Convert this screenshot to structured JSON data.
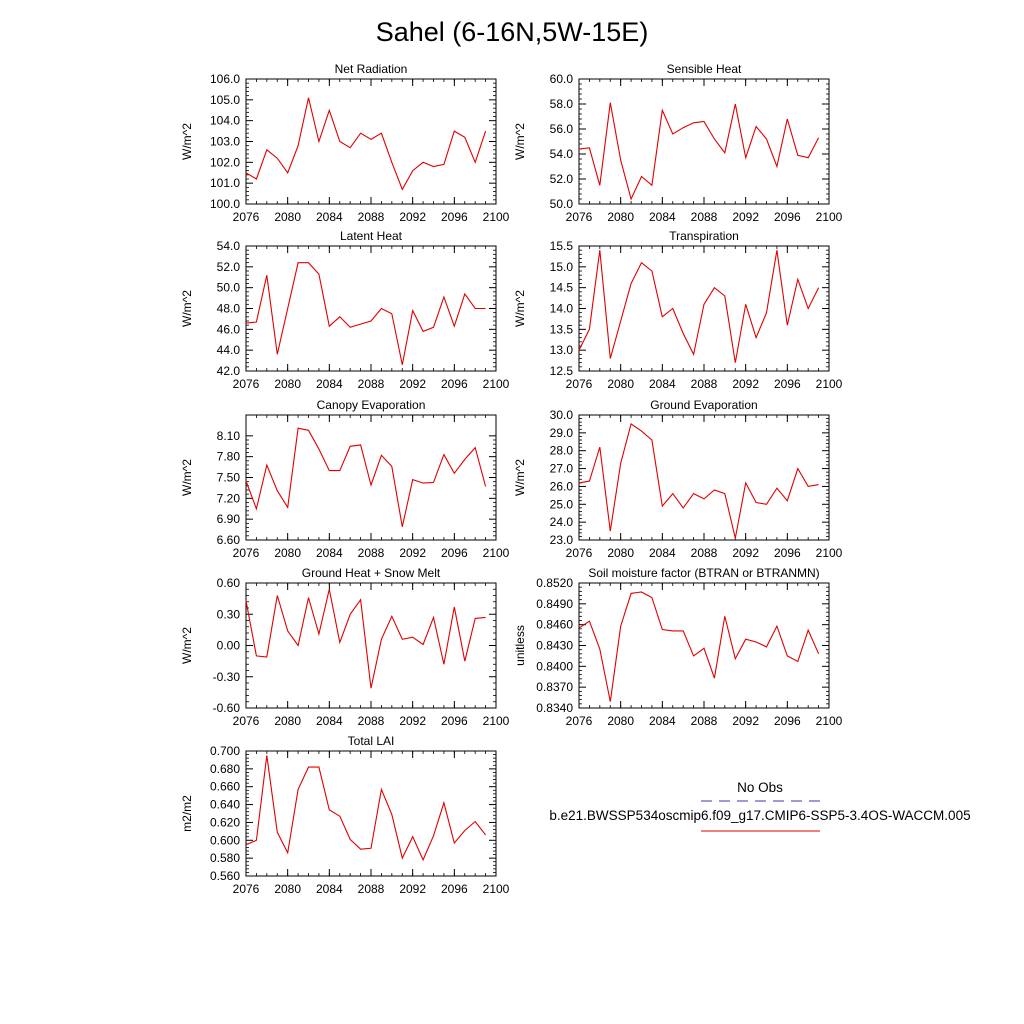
{
  "title": "Sahel (6-16N,5W-15E)",
  "x_ticks": [
    "2076",
    "2080",
    "2084",
    "2088",
    "2092",
    "2096",
    "2100"
  ],
  "legend": {
    "obs_label": "No Obs",
    "model_label": "b.e21.BWSSP534oscmip6.f09_g17.CMIP6-SSP5-3.4OS-WACCM.005",
    "obs_color": "#3a3aa8",
    "model_color": "#e00000"
  },
  "chart_data": [
    {
      "type": "line",
      "title": "Net Radiation",
      "ylabel": "W/m^2",
      "xlim": [
        2076,
        2100
      ],
      "ylim": [
        100.0,
        106.0
      ],
      "ytick_values": [
        100.0,
        101.0,
        102.0,
        103.0,
        104.0,
        105.0,
        106.0
      ],
      "ytick_labels": [
        "100.0",
        "101.0",
        "102.0",
        "103.0",
        "104.0",
        "105.0",
        "106.0"
      ],
      "x": [
        2076,
        2077,
        2078,
        2079,
        2080,
        2081,
        2082,
        2083,
        2084,
        2085,
        2086,
        2087,
        2088,
        2089,
        2090,
        2091,
        2092,
        2093,
        2094,
        2095,
        2096,
        2097,
        2098,
        2099
      ],
      "values": [
        101.5,
        101.2,
        102.6,
        102.2,
        101.5,
        102.8,
        105.1,
        103.0,
        104.5,
        103.0,
        102.7,
        103.4,
        103.1,
        103.4,
        102.0,
        100.7,
        101.6,
        102.0,
        101.8,
        101.9,
        103.5,
        103.2,
        102.0,
        103.5
      ]
    },
    {
      "type": "line",
      "title": "Sensible Heat",
      "ylabel": "W/m^2",
      "xlim": [
        2076,
        2100
      ],
      "ylim": [
        50.0,
        60.0
      ],
      "ytick_values": [
        50.0,
        52.0,
        54.0,
        56.0,
        58.0,
        60.0
      ],
      "ytick_labels": [
        "50.0",
        "52.0",
        "54.0",
        "56.0",
        "58.0",
        "60.0"
      ],
      "x": [
        2076,
        2077,
        2078,
        2079,
        2080,
        2081,
        2082,
        2083,
        2084,
        2085,
        2086,
        2087,
        2088,
        2089,
        2090,
        2091,
        2092,
        2093,
        2094,
        2095,
        2096,
        2097,
        2098,
        2099
      ],
      "values": [
        54.4,
        54.5,
        51.5,
        58.1,
        53.5,
        50.4,
        52.2,
        51.5,
        57.5,
        55.6,
        56.1,
        56.5,
        56.6,
        55.2,
        54.1,
        58.0,
        53.7,
        56.2,
        55.2,
        53.0,
        56.8,
        53.9,
        53.7,
        55.3
      ]
    },
    {
      "type": "line",
      "title": "Latent Heat",
      "ylabel": "W/m^2",
      "xlim": [
        2076,
        2100
      ],
      "ylim": [
        42.0,
        54.0
      ],
      "ytick_values": [
        42.0,
        44.0,
        46.0,
        48.0,
        50.0,
        52.0,
        54.0
      ],
      "ytick_labels": [
        "42.0",
        "44.0",
        "46.0",
        "48.0",
        "50.0",
        "52.0",
        "54.0"
      ],
      "x": [
        2076,
        2077,
        2078,
        2079,
        2080,
        2081,
        2082,
        2083,
        2084,
        2085,
        2086,
        2087,
        2088,
        2089,
        2090,
        2091,
        2092,
        2093,
        2094,
        2095,
        2096,
        2097,
        2098,
        2099
      ],
      "values": [
        46.6,
        46.7,
        51.2,
        43.6,
        48.0,
        52.4,
        52.4,
        51.3,
        46.3,
        47.2,
        46.2,
        46.5,
        46.8,
        48.0,
        47.5,
        42.6,
        47.8,
        45.8,
        46.2,
        49.1,
        46.3,
        49.4,
        48.0,
        48.0
      ]
    },
    {
      "type": "line",
      "title": "Transpiration",
      "ylabel": "W/m^2",
      "xlim": [
        2076,
        2100
      ],
      "ylim": [
        12.5,
        15.5
      ],
      "ytick_values": [
        12.5,
        13.0,
        13.5,
        14.0,
        14.5,
        15.0,
        15.5
      ],
      "ytick_labels": [
        "12.5",
        "13.0",
        "13.5",
        "14.0",
        "14.5",
        "15.0",
        "15.5"
      ],
      "x": [
        2076,
        2077,
        2078,
        2079,
        2080,
        2081,
        2082,
        2083,
        2084,
        2085,
        2086,
        2087,
        2088,
        2089,
        2090,
        2091,
        2092,
        2093,
        2094,
        2095,
        2096,
        2097,
        2098,
        2099
      ],
      "values": [
        13.0,
        13.5,
        15.4,
        12.8,
        13.7,
        14.6,
        15.1,
        14.9,
        13.8,
        14.0,
        13.4,
        12.9,
        14.1,
        14.5,
        14.3,
        12.7,
        14.1,
        13.3,
        13.9,
        15.4,
        13.6,
        14.7,
        14.0,
        14.5
      ]
    },
    {
      "type": "line",
      "title": "Canopy Evaporation",
      "ylabel": "W/m^2",
      "xlim": [
        2076,
        2100
      ],
      "ylim": [
        6.6,
        8.4
      ],
      "ytick_values": [
        6.6,
        6.9,
        7.2,
        7.5,
        7.8,
        8.1
      ],
      "ytick_labels": [
        "6.60",
        "6.90",
        "7.20",
        "7.50",
        "7.80",
        "8.10"
      ],
      "x": [
        2076,
        2077,
        2078,
        2079,
        2080,
        2081,
        2082,
        2083,
        2084,
        2085,
        2086,
        2087,
        2088,
        2089,
        2090,
        2091,
        2092,
        2093,
        2094,
        2095,
        2096,
        2097,
        2098,
        2099
      ],
      "values": [
        7.45,
        7.05,
        7.68,
        7.31,
        7.07,
        8.21,
        8.18,
        7.91,
        7.6,
        7.6,
        7.95,
        7.97,
        7.39,
        7.82,
        7.66,
        6.79,
        7.47,
        7.42,
        7.43,
        7.83,
        7.56,
        7.76,
        7.93,
        7.37
      ]
    },
    {
      "type": "line",
      "title": "Ground Evaporation",
      "ylabel": "W/m^2",
      "xlim": [
        2076,
        2100
      ],
      "ylim": [
        23.0,
        30.0
      ],
      "ytick_values": [
        23.0,
        24.0,
        25.0,
        26.0,
        27.0,
        28.0,
        29.0,
        30.0
      ],
      "ytick_labels": [
        "23.0",
        "24.0",
        "25.0",
        "26.0",
        "27.0",
        "28.0",
        "29.0",
        "30.0"
      ],
      "x": [
        2076,
        2077,
        2078,
        2079,
        2080,
        2081,
        2082,
        2083,
        2084,
        2085,
        2086,
        2087,
        2088,
        2089,
        2090,
        2091,
        2092,
        2093,
        2094,
        2095,
        2096,
        2097,
        2098,
        2099
      ],
      "values": [
        26.2,
        26.3,
        28.2,
        23.5,
        27.3,
        29.5,
        29.1,
        28.6,
        24.9,
        25.6,
        24.8,
        25.6,
        25.3,
        25.8,
        25.6,
        23.1,
        26.2,
        25.1,
        25.0,
        25.9,
        25.2,
        27.0,
        26.0,
        26.1
      ]
    },
    {
      "type": "line",
      "title": "Ground Heat + Snow Melt",
      "ylabel": "W/m^2",
      "xlim": [
        2076,
        2100
      ],
      "ylim": [
        -0.6,
        0.6
      ],
      "ytick_values": [
        -0.6,
        -0.3,
        0.0,
        0.3,
        0.6
      ],
      "ytick_labels": [
        "-0.60",
        "-0.30",
        "0.00",
        "0.30",
        "0.60"
      ],
      "x": [
        2076,
        2077,
        2078,
        2079,
        2080,
        2081,
        2082,
        2083,
        2084,
        2085,
        2086,
        2087,
        2088,
        2089,
        2090,
        2091,
        2092,
        2093,
        2094,
        2095,
        2096,
        2097,
        2098,
        2099
      ],
      "values": [
        0.43,
        -0.1,
        -0.11,
        0.48,
        0.14,
        0.0,
        0.46,
        0.11,
        0.54,
        0.03,
        0.3,
        0.44,
        -0.41,
        0.06,
        0.28,
        0.06,
        0.08,
        0.01,
        0.27,
        -0.18,
        0.37,
        -0.15,
        0.26,
        0.27
      ]
    },
    {
      "type": "line",
      "title": "Soil moisture factor (BTRAN or BTRANMN)",
      "ylabel": "unitless",
      "xlim": [
        2076,
        2100
      ],
      "ylim": [
        0.834,
        0.852
      ],
      "ytick_values": [
        0.834,
        0.837,
        0.84,
        0.843,
        0.846,
        0.849,
        0.852
      ],
      "ytick_labels": [
        "0.8340",
        "0.8370",
        "0.8400",
        "0.8430",
        "0.8460",
        "0.8490",
        "0.8520"
      ],
      "x": [
        2076,
        2077,
        2078,
        2079,
        2080,
        2081,
        2082,
        2083,
        2084,
        2085,
        2086,
        2087,
        2088,
        2089,
        2090,
        2091,
        2092,
        2093,
        2094,
        2095,
        2096,
        2097,
        2098,
        2099
      ],
      "values": [
        0.8455,
        0.8465,
        0.8425,
        0.8349,
        0.8458,
        0.8505,
        0.8507,
        0.8499,
        0.8453,
        0.8451,
        0.8451,
        0.8415,
        0.8426,
        0.8383,
        0.8472,
        0.8411,
        0.8439,
        0.8435,
        0.8428,
        0.8458,
        0.8415,
        0.8407,
        0.8452,
        0.8418
      ]
    },
    {
      "type": "line",
      "title": "Total LAI",
      "ylabel": "m2/m2",
      "xlim": [
        2076,
        2100
      ],
      "ylim": [
        0.56,
        0.7
      ],
      "ytick_values": [
        0.56,
        0.58,
        0.6,
        0.62,
        0.64,
        0.66,
        0.68,
        0.7
      ],
      "ytick_labels": [
        "0.560",
        "0.580",
        "0.600",
        "0.620",
        "0.640",
        "0.660",
        "0.680",
        "0.700"
      ],
      "x": [
        2076,
        2077,
        2078,
        2079,
        2080,
        2081,
        2082,
        2083,
        2084,
        2085,
        2086,
        2087,
        2088,
        2089,
        2090,
        2091,
        2092,
        2093,
        2094,
        2095,
        2096,
        2097,
        2098,
        2099
      ],
      "values": [
        0.595,
        0.6,
        0.695,
        0.609,
        0.586,
        0.657,
        0.682,
        0.682,
        0.634,
        0.627,
        0.601,
        0.59,
        0.591,
        0.657,
        0.629,
        0.58,
        0.604,
        0.578,
        0.605,
        0.642,
        0.597,
        0.611,
        0.621,
        0.606
      ]
    }
  ]
}
